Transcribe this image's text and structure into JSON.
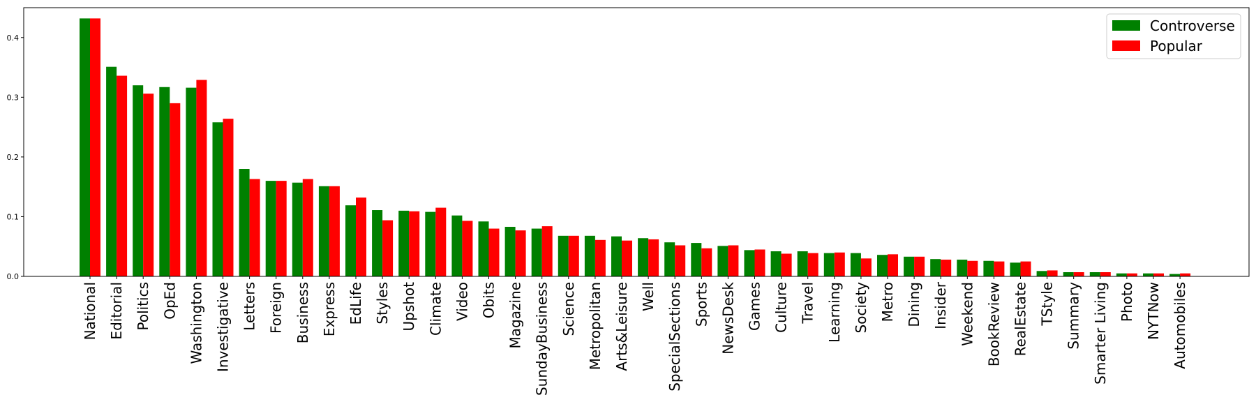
{
  "chart_data": {
    "type": "bar",
    "categories": [
      "National",
      "Editorial",
      "Politics",
      "OpEd",
      "Washington",
      "Investigative",
      "Letters",
      "Foreign",
      "Business",
      "Express",
      "EdLife",
      "Styles",
      "Upshot",
      "Climate",
      "Video",
      "Obits",
      "Magazine",
      "SundayBusiness",
      "Science",
      "Metropolitan",
      "Arts&Leisure",
      "Well",
      "SpecialSections",
      "Sports",
      "NewsDesk",
      "Games",
      "Culture",
      "Travel",
      "Learning",
      "Society",
      "Metro",
      "Dining",
      "Insider",
      "Weekend",
      "BookReview",
      "RealEstate",
      "TStyle",
      "Summary",
      "Smarter Living",
      "Photo",
      "NYTNow",
      "Automobiles"
    ],
    "series": [
      {
        "name": "Controverse",
        "color": "#008000",
        "values": [
          0.432,
          0.351,
          0.32,
          0.317,
          0.316,
          0.258,
          0.18,
          0.16,
          0.157,
          0.151,
          0.119,
          0.111,
          0.11,
          0.108,
          0.102,
          0.092,
          0.083,
          0.08,
          0.068,
          0.068,
          0.067,
          0.064,
          0.057,
          0.056,
          0.051,
          0.044,
          0.042,
          0.042,
          0.039,
          0.039,
          0.036,
          0.033,
          0.029,
          0.028,
          0.026,
          0.023,
          0.009,
          0.007,
          0.007,
          0.005,
          0.005,
          0.004
        ]
      },
      {
        "name": "Popular",
        "color": "#ff0000",
        "values": [
          0.432,
          0.336,
          0.306,
          0.29,
          0.329,
          0.264,
          0.163,
          0.16,
          0.163,
          0.151,
          0.132,
          0.094,
          0.109,
          0.115,
          0.093,
          0.08,
          0.077,
          0.084,
          0.068,
          0.061,
          0.06,
          0.062,
          0.052,
          0.047,
          0.052,
          0.045,
          0.038,
          0.039,
          0.04,
          0.03,
          0.037,
          0.033,
          0.028,
          0.026,
          0.025,
          0.025,
          0.01,
          0.007,
          0.007,
          0.005,
          0.005,
          0.005
        ]
      }
    ],
    "y_ticks": [
      "0.0",
      "0.1",
      "0.2",
      "0.3",
      "0.4"
    ],
    "ylim": [
      0,
      0.45
    ],
    "title": "",
    "xlabel": "",
    "ylabel": "",
    "legend_position": "top-right",
    "grid": false
  }
}
